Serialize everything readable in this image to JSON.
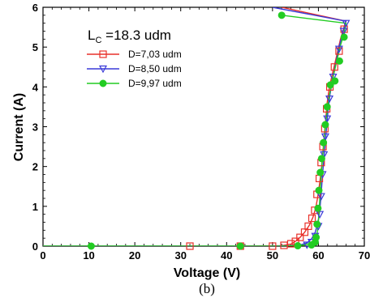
{
  "chart_data": {
    "type": "line",
    "annotation_main": "L",
    "annotation_sub": "C",
    "annotation_value": " =18.3 udm",
    "xlabel": "Voltage (V)",
    "ylabel": "Current (A)",
    "caption": "(b)",
    "xlim": [
      0,
      70
    ],
    "ylim": [
      0,
      6
    ],
    "xticks": [
      0,
      10,
      20,
      30,
      40,
      50,
      60,
      70
    ],
    "yticks": [
      0,
      1,
      2,
      3,
      4,
      5,
      6
    ],
    "series": [
      {
        "name": "D=7,03 udm",
        "color": "#e8312a",
        "marker": "square",
        "curve": [
          [
            0,
            0
          ],
          [
            40,
            0
          ],
          [
            52,
            0.01
          ],
          [
            54,
            0.05
          ],
          [
            55,
            0.12
          ],
          [
            56,
            0.22
          ],
          [
            57,
            0.35
          ],
          [
            58,
            0.52
          ],
          [
            58.8,
            0.72
          ],
          [
            59.4,
            0.95
          ],
          [
            59.8,
            1.2
          ],
          [
            60.3,
            1.6
          ],
          [
            60.7,
            2.0
          ],
          [
            61.0,
            2.4
          ],
          [
            61.3,
            2.8
          ],
          [
            61.6,
            3.2
          ],
          [
            61.9,
            3.6
          ],
          [
            62.4,
            4.0
          ],
          [
            63.2,
            4.4
          ],
          [
            64.0,
            4.8
          ],
          [
            64.8,
            5.2
          ],
          [
            65.7,
            5.55
          ],
          [
            66,
            5.65
          ],
          [
            52,
            6.0
          ]
        ],
        "markers": [
          [
            32,
            0
          ],
          [
            43,
            0
          ],
          [
            50,
            0
          ],
          [
            52.5,
            0.02
          ],
          [
            54,
            0.06
          ],
          [
            55,
            0.12
          ],
          [
            56,
            0.22
          ],
          [
            57,
            0.35
          ],
          [
            57.8,
            0.5
          ],
          [
            58.6,
            0.7
          ],
          [
            59.2,
            0.9
          ],
          [
            59.7,
            1.3
          ],
          [
            60.2,
            1.7
          ],
          [
            60.6,
            2.1
          ],
          [
            61.0,
            2.5
          ],
          [
            61.4,
            2.95
          ],
          [
            61.8,
            3.45
          ],
          [
            62.5,
            4.0
          ],
          [
            63.5,
            4.5
          ],
          [
            64.5,
            4.9
          ],
          [
            65.6,
            5.45
          ]
        ]
      },
      {
        "name": "D=8,50 udm",
        "color": "#3a3ad8",
        "marker": "triangle-down",
        "curve": [
          [
            0,
            0
          ],
          [
            50,
            0
          ],
          [
            54,
            0.01
          ],
          [
            56,
            0.03
          ],
          [
            57.5,
            0.08
          ],
          [
            58.5,
            0.18
          ],
          [
            59.3,
            0.35
          ],
          [
            59.9,
            0.6
          ],
          [
            60.3,
            0.9
          ],
          [
            60.6,
            1.3
          ],
          [
            60.9,
            1.8
          ],
          [
            61.2,
            2.2
          ],
          [
            61.5,
            2.6
          ],
          [
            61.8,
            3.0
          ],
          [
            62.1,
            3.4
          ],
          [
            62.5,
            3.8
          ],
          [
            63.1,
            4.2
          ],
          [
            63.8,
            4.6
          ],
          [
            64.5,
            5.0
          ],
          [
            65.3,
            5.35
          ],
          [
            66,
            5.65
          ],
          [
            50,
            6.0
          ]
        ],
        "markers": [
          [
            57.5,
            0.03
          ],
          [
            58.5,
            0.1
          ],
          [
            59.3,
            0.25
          ],
          [
            60.0,
            0.5
          ],
          [
            60.3,
            0.8
          ],
          [
            60.6,
            1.25
          ],
          [
            60.9,
            1.8
          ],
          [
            61.2,
            2.3
          ],
          [
            61.5,
            2.75
          ],
          [
            61.9,
            3.2
          ],
          [
            62.4,
            3.7
          ],
          [
            63.2,
            4.25
          ],
          [
            64.5,
            4.95
          ],
          [
            65.5,
            5.4
          ],
          [
            66,
            5.6
          ]
        ]
      },
      {
        "name": "D=9,97 udm",
        "color": "#22cc22",
        "marker": "circle",
        "curve": [
          [
            0,
            0
          ],
          [
            52,
            0
          ],
          [
            55,
            0.01
          ],
          [
            57,
            0.03
          ],
          [
            58.5,
            0.08
          ],
          [
            59.3,
            0.15
          ],
          [
            59.7,
            0.3
          ],
          [
            60.0,
            0.6
          ],
          [
            60.2,
            1.0
          ],
          [
            60.4,
            1.4
          ],
          [
            60.6,
            1.8
          ],
          [
            60.9,
            2.2
          ],
          [
            61.2,
            2.6
          ],
          [
            61.5,
            3.0
          ],
          [
            61.9,
            3.4
          ],
          [
            62.4,
            3.8
          ],
          [
            63.1,
            4.2
          ],
          [
            63.9,
            4.6
          ],
          [
            64.7,
            5.0
          ],
          [
            65.6,
            5.35
          ],
          [
            66,
            5.6
          ],
          [
            52,
            5.8
          ]
        ],
        "markers": [
          [
            10.5,
            0
          ],
          [
            43,
            0
          ],
          [
            55.5,
            0.01
          ],
          [
            58.5,
            0.03
          ],
          [
            59.3,
            0.1
          ],
          [
            59.5,
            0.22
          ],
          [
            59.7,
            0.55
          ],
          [
            59.9,
            0.95
          ],
          [
            60.1,
            1.4
          ],
          [
            60.4,
            1.85
          ],
          [
            60.7,
            2.2
          ],
          [
            61.1,
            2.6
          ],
          [
            61.5,
            3.05
          ],
          [
            61.9,
            3.5
          ],
          [
            62.6,
            4.05
          ],
          [
            63.6,
            4.15
          ],
          [
            64.6,
            4.65
          ],
          [
            65.6,
            5.25
          ],
          [
            52,
            5.8
          ]
        ]
      }
    ]
  }
}
